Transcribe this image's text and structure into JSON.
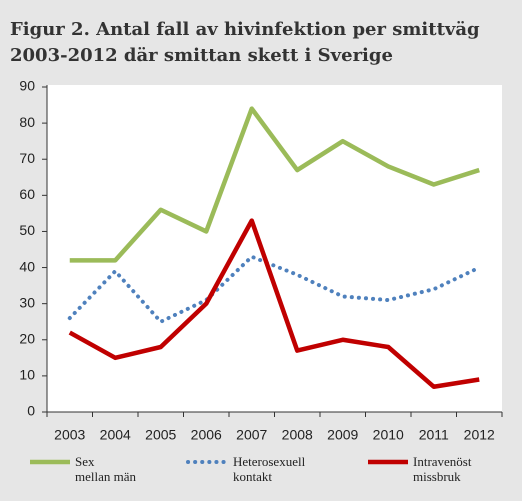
{
  "chart_data": {
    "type": "line",
    "title": "Figur 2. Antal fall av hivinfektion per smittväg",
    "subtitle": "2003-2012 där smittan skett i Sverige",
    "categories": [
      "2003",
      "2004",
      "2005",
      "2006",
      "2007",
      "2008",
      "2009",
      "2010",
      "2011",
      "2012"
    ],
    "series": [
      {
        "name": "Sex\nmellan män",
        "color": "#9bbb59",
        "style": "solid",
        "values": [
          42,
          42,
          56,
          50,
          84,
          67,
          75,
          68,
          63,
          67
        ]
      },
      {
        "name": "Heterosexuell\nkontakt",
        "color": "#4f81bd",
        "style": "dotted",
        "values": [
          26,
          39,
          25,
          31,
          43,
          38,
          32,
          31,
          34,
          40
        ]
      },
      {
        "name": "Intravenöst\nmissbruk",
        "color": "#c00000",
        "style": "solid",
        "values": [
          22,
          15,
          18,
          30,
          53,
          17,
          20,
          18,
          7,
          9
        ]
      }
    ],
    "ylim": [
      0,
      90
    ],
    "yticks": [
      0,
      10,
      20,
      30,
      40,
      50,
      60,
      70,
      80,
      90
    ],
    "grid": false
  }
}
